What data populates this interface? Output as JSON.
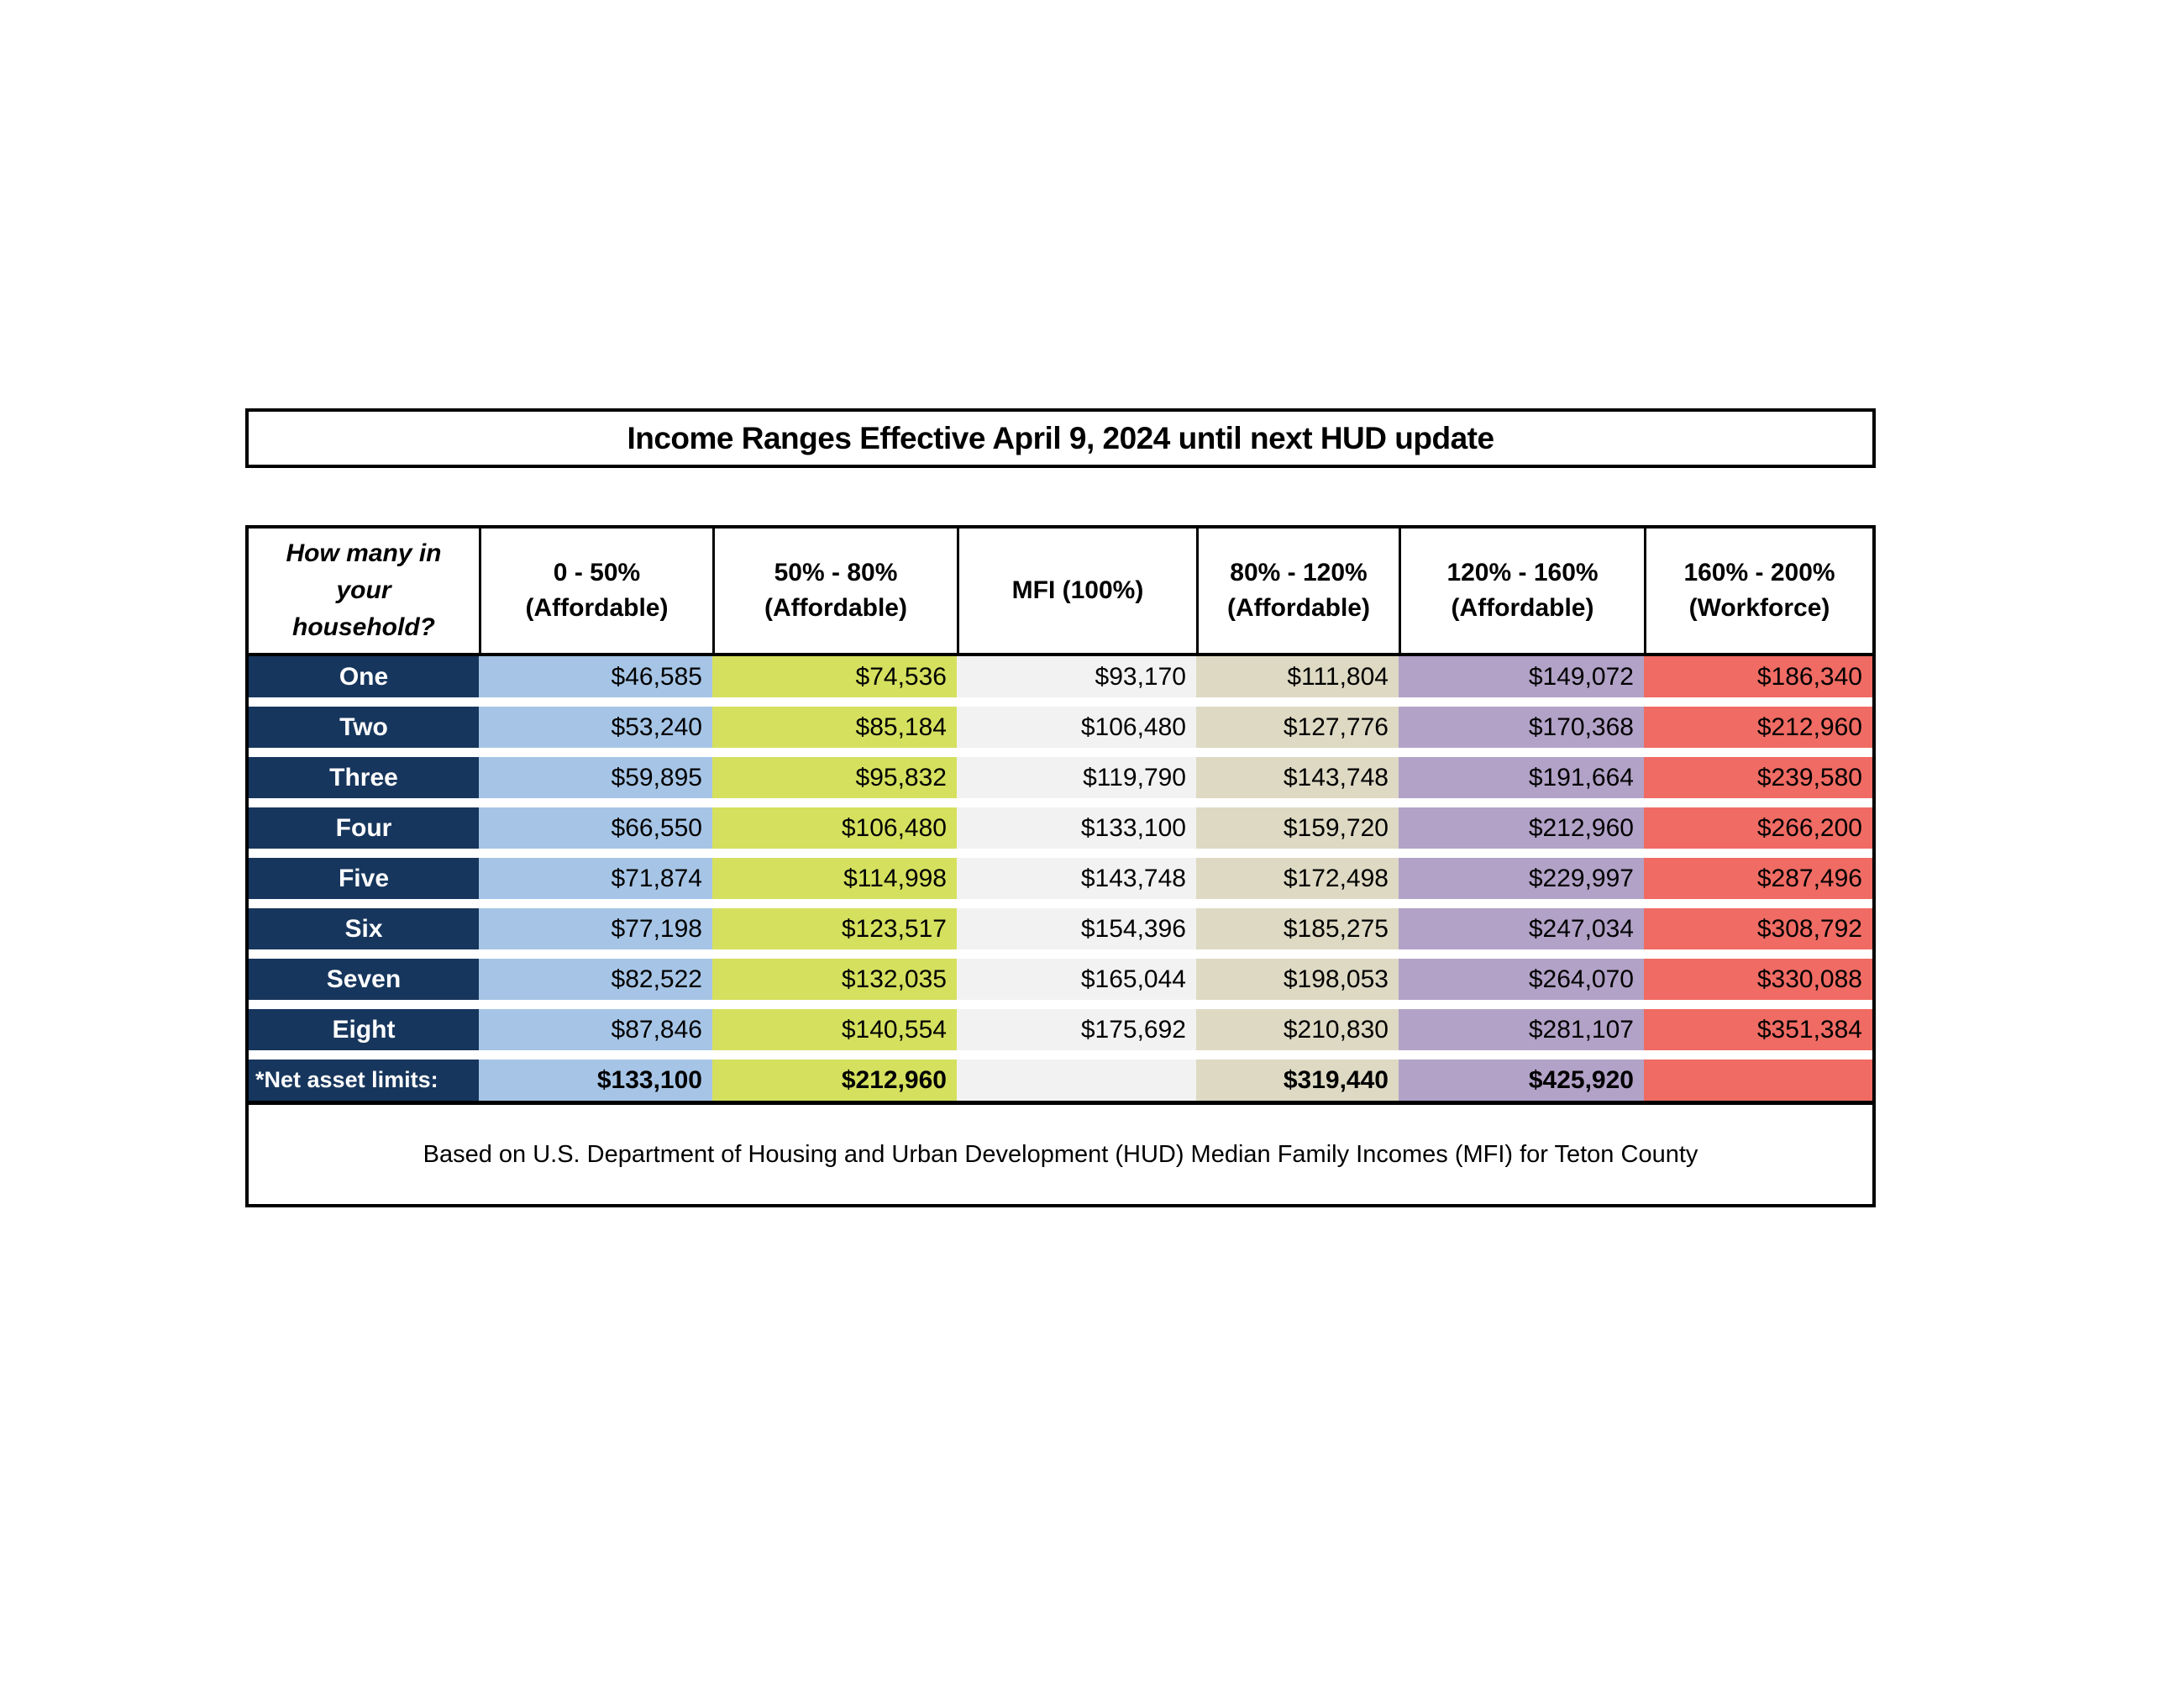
{
  "title": "Income Ranges Effective April 9, 2024 until next HUD update",
  "colors": {
    "row_label_bg": "#17365d",
    "border": "#000000",
    "page_bg": "#ffffff"
  },
  "table": {
    "header": {
      "household": "How many in your household?",
      "columns": [
        {
          "line1": "0 - 50%",
          "line2": "(Affordable)",
          "color": "#a6c5e6"
        },
        {
          "line1": "50% - 80%",
          "line2": "(Affordable)",
          "color": "#d5e05e"
        },
        {
          "line1": "MFI (100%)",
          "line2": "",
          "color": "#f2f2f2"
        },
        {
          "line1": "80% - 120%",
          "line2": "(Affordable)",
          "color": "#ddd9c3"
        },
        {
          "line1": "120% - 160%",
          "line2": "(Affordable)",
          "color": "#b2a2c7"
        },
        {
          "line1": "160% - 200%",
          "line2": "(Workforce)",
          "color": "#ef6b63"
        }
      ]
    },
    "rows": [
      {
        "label": "One",
        "values": [
          "$46,585",
          "$74,536",
          "$93,170",
          "$111,804",
          "$149,072",
          "$186,340"
        ]
      },
      {
        "label": "Two",
        "values": [
          "$53,240",
          "$85,184",
          "$106,480",
          "$127,776",
          "$170,368",
          "$212,960"
        ]
      },
      {
        "label": "Three",
        "values": [
          "$59,895",
          "$95,832",
          "$119,790",
          "$143,748",
          "$191,664",
          "$239,580"
        ]
      },
      {
        "label": "Four",
        "values": [
          "$66,550",
          "$106,480",
          "$133,100",
          "$159,720",
          "$212,960",
          "$266,200"
        ]
      },
      {
        "label": "Five",
        "values": [
          "$71,874",
          "$114,998",
          "$143,748",
          "$172,498",
          "$229,997",
          "$287,496"
        ]
      },
      {
        "label": "Six",
        "values": [
          "$77,198",
          "$123,517",
          "$154,396",
          "$185,275",
          "$247,034",
          "$308,792"
        ]
      },
      {
        "label": "Seven",
        "values": [
          "$82,522",
          "$132,035",
          "$165,044",
          "$198,053",
          "$264,070",
          "$330,088"
        ]
      },
      {
        "label": "Eight",
        "values": [
          "$87,846",
          "$140,554",
          "$175,692",
          "$210,830",
          "$281,107",
          "$351,384"
        ]
      }
    ],
    "net_asset_row": {
      "label": "*Net asset limits:",
      "values": [
        "$133,100",
        "$212,960",
        "",
        "$319,440",
        "$425,920",
        ""
      ]
    }
  },
  "footer": "Based on U.S. Department of Housing and Urban Development (HUD) Median Family Incomes (MFI) for Teton County"
}
